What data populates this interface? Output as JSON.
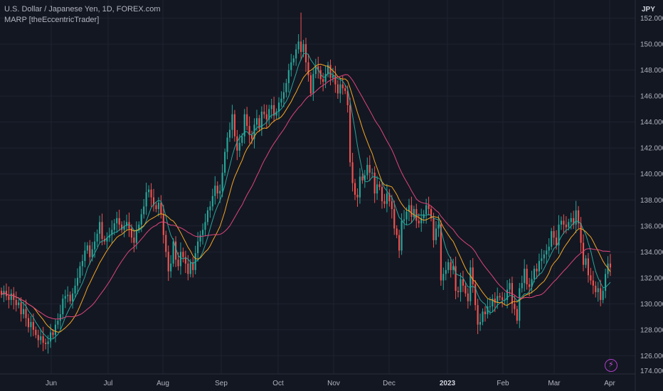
{
  "legend": {
    "symbol_line": "U.S. Dollar / Japanese Yen, 1D, FOREX.com",
    "indicator_line": "MARP [theEccentricTrader]"
  },
  "price_axis": {
    "currency": "JPY",
    "tick_labels": [
      "126.000",
      "128.000",
      "130.000",
      "132.000",
      "134.000",
      "136.000",
      "138.000",
      "140.000",
      "142.000",
      "144.000",
      "146.000",
      "148.000",
      "150.000",
      "152.000"
    ],
    "bottom_label": "174.000",
    "last_price_label": "",
    "colors": {
      "axis_text": "#b2b5be",
      "grid": "#1f2330",
      "line": "#2a2e39"
    }
  },
  "icons": {
    "bolt": "lightning-bolt-icon"
  },
  "chart_data": {
    "type": "candlestick",
    "title": "U.S. Dollar / Japanese Yen, 1D, FOREX.com",
    "xlabel": "",
    "ylabel": "",
    "ylim": [
      124.6,
      153.4
    ],
    "grid": true,
    "x_tick_labels": [
      "Jun",
      "Jul",
      "Aug",
      "Sep",
      "Oct",
      "Nov",
      "Dec",
      "2023",
      "Feb",
      "Mar",
      "Apr"
    ],
    "candle_colors": {
      "up": "#26a69a",
      "down": "#ef5350"
    },
    "series": [
      {
        "color": "#26a69a",
        "period": "short",
        "values": []
      },
      {
        "color": "#f5a623",
        "period": "medium",
        "values": []
      },
      {
        "color": "#e0457b",
        "period": "long",
        "values": []
      }
    ],
    "closes": [
      130.7,
      131.0,
      130.6,
      130.3,
      130.8,
      130.3,
      129.9,
      130.1,
      129.2,
      129.6,
      128.9,
      128.2,
      128.6,
      128.0,
      127.6,
      127.2,
      127.5,
      127.0,
      126.9,
      127.1,
      127.8,
      127.6,
      128.4,
      128.7,
      129.2,
      130.4,
      130.6,
      130.7,
      130.2,
      130.8,
      131.4,
      132.0,
      132.9,
      133.3,
      134.1,
      134.5,
      133.6,
      134.2,
      134.8,
      135.4,
      136.3,
      135.0,
      134.8,
      135.1,
      135.3,
      135.7,
      136.2,
      136.6,
      136.1,
      135.7,
      136.0,
      136.3,
      135.8,
      135.1,
      134.7,
      135.7,
      136.1,
      136.9,
      137.5,
      138.6,
      138.8,
      138.2,
      137.6,
      137.3,
      137.8,
      136.9,
      135.3,
      134.0,
      132.5,
      133.1,
      134.8,
      133.4,
      132.9,
      134.0,
      133.6,
      133.1,
      132.3,
      133.2,
      132.6,
      133.9,
      134.8,
      135.3,
      135.7,
      136.3,
      137.2,
      137.5,
      138.3,
      139.1,
      138.5,
      138.7,
      140.1,
      141.7,
      142.8,
      143.4,
      144.6,
      142.9,
      141.8,
      142.4,
      142.9,
      144.6,
      143.7,
      143.0,
      142.7,
      143.8,
      144.3,
      143.5,
      144.8,
      144.6,
      144.2,
      145.0,
      145.3,
      144.5,
      144.8,
      145.5,
      145.8,
      146.3,
      147.0,
      148.0,
      148.6,
      148.9,
      149.6,
      150.2,
      149.4,
      150.0,
      148.6,
      147.6,
      146.2,
      147.7,
      148.3,
      148.0,
      147.3,
      147.1,
      147.7,
      148.4,
      147.4,
      147.6,
      146.9,
      146.2,
      146.9,
      146.6,
      146.4,
      145.3,
      140.9,
      139.3,
      138.4,
      138.2,
      139.8,
      139.5,
      139.9,
      140.7,
      140.1,
      140.1,
      138.5,
      139.2,
      139.0,
      137.9,
      137.7,
      138.5,
      137.9,
      137.3,
      135.8,
      135.3,
      134.1,
      136.4,
      136.5,
      137.1,
      137.6,
      136.7,
      137.3,
      136.4,
      136.2,
      136.6,
      136.9,
      137.6,
      137.3,
      136.6,
      134.9,
      135.8,
      136.1,
      131.8,
      132.3,
      132.6,
      133.2,
      132.6,
      132.9,
      131.0,
      130.9,
      131.9,
      131.4,
      130.8,
      130.2,
      132.8,
      131.5,
      129.9,
      128.4,
      128.6,
      129.4,
      129.2,
      129.8,
      129.8,
      130.4,
      130.1,
      130.6,
      130.5,
      130.3,
      130.3,
      131.1,
      131.6,
      130.0,
      129.6,
      128.7,
      131.2,
      131.6,
      132.7,
      131.5,
      131.3,
      131.9,
      132.7,
      132.5,
      133.3,
      133.5,
      133.8,
      134.1,
      134.4,
      135.6,
      135.1,
      134.5,
      136.1,
      136.4,
      136.1,
      135.9,
      136.3,
      136.6,
      136.1,
      137.2,
      136.2,
      134.7,
      133.0,
      133.5,
      132.2,
      131.8,
      131.4,
      130.9,
      131.2,
      130.3,
      131.0,
      132.3,
      133.1,
      132.8
    ]
  }
}
